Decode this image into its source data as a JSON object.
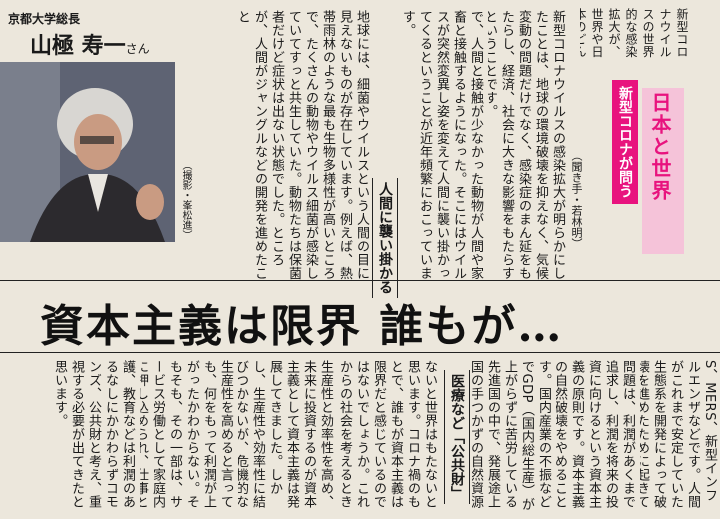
{
  "series": {
    "title": "日本と世界",
    "subtitle": "新型コロナが問う"
  },
  "headline": "資本主義は限界 誰もが…",
  "person": {
    "affiliation": "京都大学総長",
    "name": "山極 寿一",
    "suffix": "さん",
    "photo_credit": "（撮影・峯松進）"
  },
  "interviewer": "（聞き手・若林明）",
  "lead": "新型コロナウイルスの世界的な感染拡大が、世界や日本のどんな問題を明らかにしたのか。人類はコロナ禍から何を学ぶことができるのか。霊長類学・人類学者の山極寿一京都大学総長に聞きました。",
  "subheads": {
    "s1": "人間に襲い掛かる",
    "s2": "医療など「公共財」"
  },
  "columns": [
    "新型コロナウイルスの感染拡大が明らかにしたことは、地球の環境破壊を抑えなく、気候変動の問題だけでなく、感染症のまん延をもたらし、経済、社会に大きな影響をもたらすということです。",
    "で、人間と接触が少なかった動物が人間や家畜と接触するようになった。そこにはウイルスが突然変異し姿を変えて人間に襲い掛かってくるということが近年頻繁におこっています。",
    "地球には、細菌やウイルスという人間の目に見えないものが存在しています。例えば、熱帯雨林のような最も生物多様性が高いところで、たくさんの動物やウイルス細菌が感染していてすっと共生していた。動物たちは保菌者だけど症状は出ない状態でした。ところが、人間がジャングルなどの開発を進めたこと",
    "S、MERS、新型インフルエンザなどです。人間がこれまで安定していた生態系を開発によって破壊を進めたために起きています。",
    "問題は、利潤があくまで追求し、利潤を将来の投資に向けるという資本主義の原則です。資本主義の自然破壊をやめることがないので、自然は本主義は「搾取」しても言わないために、自然を「搾取」してもいいと考えま",
    "す。国内産業の不振などでGDP（国内総生産）が上がらずに苦労している先進国の中で、発展途上国の手つかずの自然資源を利用して利潤を上げようとしているのです。",
    "ないと世界はもたないと思います。コロナ禍のもとで、誰もが資本主義は限界だと感じているのではないでしょうか。これからの社会を考えるときに、コロナ危機が教えてくれることは、人間にとって何が大切かということです。",
    "生産性と効率性を高め、未来に投資するのが資本主義として資本主義は発展してきました。しかし、生産性や効率性に結びつかないが、危機的な事態でも続けなければならない仕事があることが分かりました。例えば、医療、介護、子育て、教育などです。",
    "生産性を高めると言っても、何をもって利潤が上がったかわからない。そもそも、その一部は、サービス労働として家庭内に押し込められ、仕事とはみなされてきませんでした。しかし、それらの仕事は人々が生きることにとって大切だと改めてわかってきました。",
    "護、教育などは利潤のあるなしにかかわらずコモンズ、公共財と考え、重視する必要が出てきたと思います。"
  ]
}
